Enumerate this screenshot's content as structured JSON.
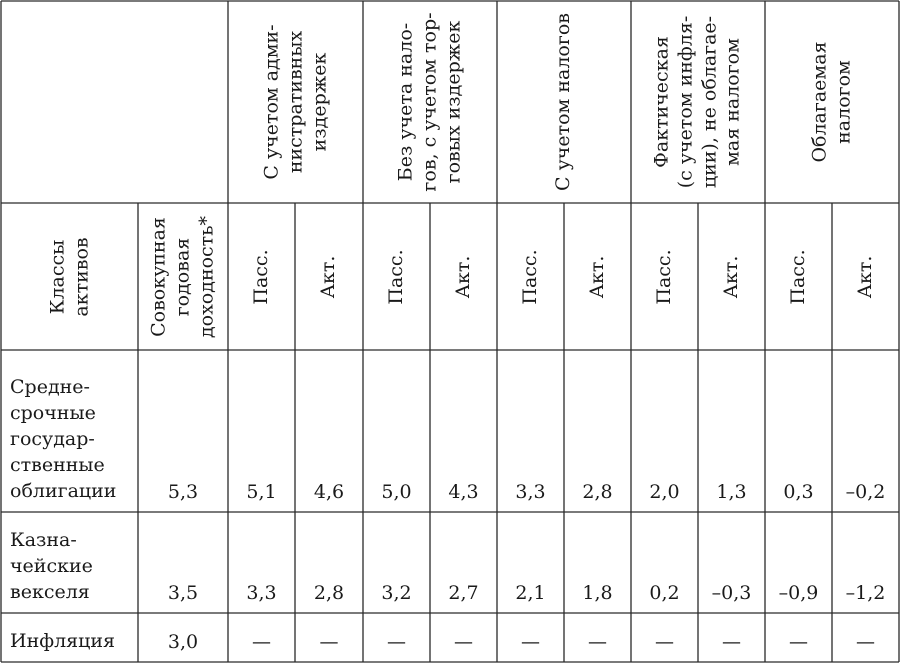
{
  "header": {
    "col_asset_class": [
      "Классы",
      "активов"
    ],
    "col_total_return": [
      "Совокупная",
      "годовая",
      "доходность*"
    ],
    "groups": [
      {
        "lines": [
          "С учетом адми-",
          "нистративных",
          "издержек"
        ]
      },
      {
        "lines": [
          "Без учета нало-",
          "гов, с учетом тор-",
          "говых издержек"
        ]
      },
      {
        "lines": [
          "С учетом налогов"
        ]
      },
      {
        "lines": [
          "Фактическая",
          "(с учетом инфля-",
          "ции), не облагае-",
          "мая налогом"
        ]
      },
      {
        "lines": [
          "Облагаемая",
          "налогом"
        ]
      }
    ],
    "passive": "Пасс.",
    "active": "Акт."
  },
  "rows": [
    {
      "label": [
        "Средне-",
        "срочные",
        "государ-",
        "ственные",
        "облигации"
      ],
      "total": "5,3",
      "values": [
        "5,1",
        "4,6",
        "5,0",
        "4,3",
        "3,3",
        "2,8",
        "2,0",
        "1,3",
        "0,3",
        "–0,2"
      ]
    },
    {
      "label": [
        "Казна-",
        "чейские",
        "векселя"
      ],
      "total": "3,5",
      "values": [
        "3,3",
        "2,8",
        "3,2",
        "2,7",
        "2,1",
        "1,8",
        "0,2",
        "–0,3",
        "–0,9",
        "–1,2"
      ]
    },
    {
      "label": [
        "Инфляция"
      ],
      "total": "3,0",
      "values": [
        "—",
        "—",
        "—",
        "—",
        "—",
        "—",
        "—",
        "—",
        "—",
        "—"
      ]
    }
  ]
}
